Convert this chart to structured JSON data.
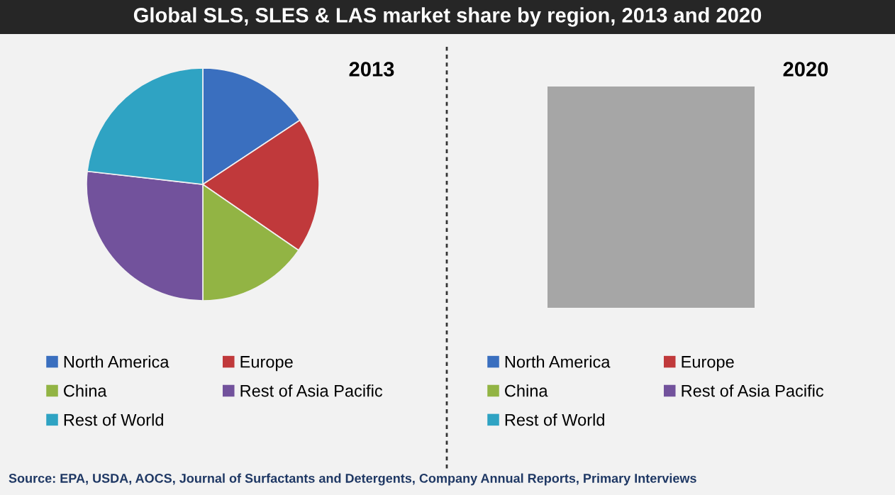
{
  "chart_data": [
    {
      "type": "pie",
      "title": "Global SLS, SLES & LAS market share by region, 2013 and 2020",
      "subtitle": "2013",
      "categories": [
        "North America",
        "Europe",
        "China",
        "Rest of Asia Pacific",
        "Rest of World"
      ],
      "values": [
        15.7,
        18.9,
        15.4,
        26.8,
        23.2
      ],
      "colors": [
        "#3a6fbf",
        "#c0393b",
        "#92b444",
        "#72529c",
        "#2fa3c3"
      ],
      "legend": "bottom",
      "annotations": [
        "Source: EPA, USDA, AOCS, Journal of Surfactants and Detergents, Company Annual Reports, Primary Interviews"
      ]
    },
    {
      "type": "other",
      "title": "2020",
      "categories": [
        "North America",
        "Europe",
        "China",
        "Rest of Asia Pacific",
        "Rest of World"
      ],
      "colors": [
        "#3a6fbf",
        "#c0393b",
        "#92b444",
        "#72529c",
        "#2fa3c3"
      ]
    }
  ]
}
